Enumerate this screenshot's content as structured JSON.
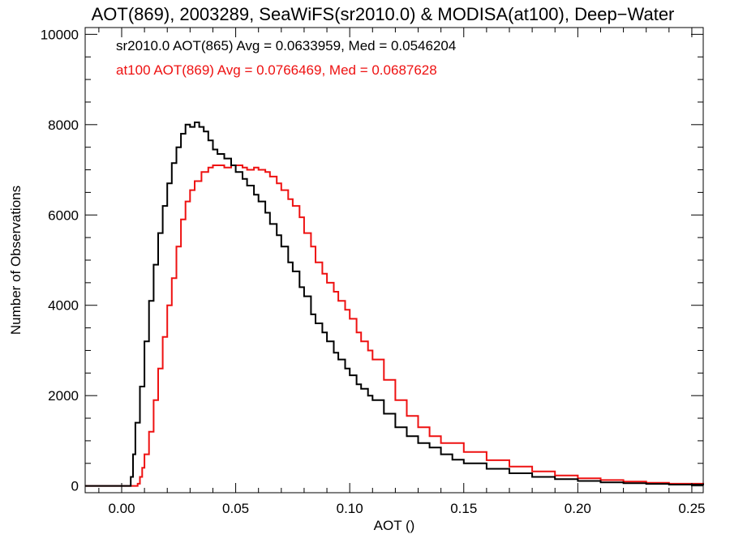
{
  "chart_data": {
    "type": "step-histogram",
    "title": "AOT(869), 2003289, SeaWiFS(sr2010.0) & MODISA(at100), Deep−Water",
    "xlabel": "AOT ()",
    "ylabel": "Number of Observations",
    "xlim": [
      -0.016,
      0.255
    ],
    "ylim": [
      -150,
      10150
    ],
    "xticks": [
      0.0,
      0.05,
      0.1,
      0.15,
      0.2,
      0.25
    ],
    "xtick_labels": [
      "0.00",
      "0.05",
      "0.10",
      "0.15",
      "0.20",
      "0.25"
    ],
    "yticks": [
      0,
      2000,
      4000,
      6000,
      8000,
      10000
    ],
    "ytick_labels": [
      "0",
      "2000",
      "4000",
      "6000",
      "8000",
      "10000"
    ],
    "grid": false,
    "legend_position": "top-left",
    "series": [
      {
        "name": "sr2010.0 AOT(865) Avg = 0.0633959, Med = 0.0546204",
        "color": "#000000",
        "points": [
          [
            -0.016,
            0
          ],
          [
            0.003,
            0
          ],
          [
            0.004,
            200
          ],
          [
            0.005,
            700
          ],
          [
            0.006,
            1400
          ],
          [
            0.008,
            2200
          ],
          [
            0.01,
            3200
          ],
          [
            0.012,
            4100
          ],
          [
            0.014,
            4900
          ],
          [
            0.016,
            5600
          ],
          [
            0.018,
            6200
          ],
          [
            0.02,
            6700
          ],
          [
            0.022,
            7150
          ],
          [
            0.024,
            7500
          ],
          [
            0.026,
            7800
          ],
          [
            0.028,
            8000
          ],
          [
            0.03,
            7950
          ],
          [
            0.032,
            8050
          ],
          [
            0.034,
            7950
          ],
          [
            0.036,
            7850
          ],
          [
            0.038,
            7650
          ],
          [
            0.04,
            7450
          ],
          [
            0.042,
            7350
          ],
          [
            0.045,
            7250
          ],
          [
            0.048,
            7100
          ],
          [
            0.05,
            6950
          ],
          [
            0.053,
            6800
          ],
          [
            0.055,
            6650
          ],
          [
            0.058,
            6450
          ],
          [
            0.06,
            6300
          ],
          [
            0.063,
            6050
          ],
          [
            0.065,
            5800
          ],
          [
            0.068,
            5550
          ],
          [
            0.07,
            5300
          ],
          [
            0.073,
            4950
          ],
          [
            0.075,
            4750
          ],
          [
            0.078,
            4400
          ],
          [
            0.08,
            4200
          ],
          [
            0.083,
            3800
          ],
          [
            0.085,
            3600
          ],
          [
            0.088,
            3400
          ],
          [
            0.09,
            3200
          ],
          [
            0.093,
            2950
          ],
          [
            0.095,
            2800
          ],
          [
            0.098,
            2600
          ],
          [
            0.1,
            2450
          ],
          [
            0.103,
            2250
          ],
          [
            0.105,
            2150
          ],
          [
            0.108,
            2000
          ],
          [
            0.11,
            1900
          ],
          [
            0.115,
            1600
          ],
          [
            0.12,
            1300
          ],
          [
            0.125,
            1100
          ],
          [
            0.13,
            950
          ],
          [
            0.135,
            850
          ],
          [
            0.14,
            700
          ],
          [
            0.145,
            580
          ],
          [
            0.15,
            500
          ],
          [
            0.16,
            380
          ],
          [
            0.17,
            280
          ],
          [
            0.18,
            200
          ],
          [
            0.19,
            150
          ],
          [
            0.2,
            110
          ],
          [
            0.21,
            80
          ],
          [
            0.22,
            60
          ],
          [
            0.23,
            45
          ],
          [
            0.24,
            30
          ],
          [
            0.255,
            15
          ]
        ]
      },
      {
        "name": "at100 AOT(869) Avg = 0.0766469, Med = 0.0687628",
        "color": "#ee1111",
        "points": [
          [
            -0.016,
            0
          ],
          [
            0.006,
            0
          ],
          [
            0.007,
            50
          ],
          [
            0.008,
            200
          ],
          [
            0.009,
            400
          ],
          [
            0.01,
            700
          ],
          [
            0.012,
            1200
          ],
          [
            0.014,
            1900
          ],
          [
            0.016,
            2600
          ],
          [
            0.018,
            3300
          ],
          [
            0.02,
            4000
          ],
          [
            0.022,
            4600
          ],
          [
            0.024,
            5300
          ],
          [
            0.026,
            5900
          ],
          [
            0.028,
            6300
          ],
          [
            0.03,
            6550
          ],
          [
            0.032,
            6750
          ],
          [
            0.035,
            6950
          ],
          [
            0.038,
            7050
          ],
          [
            0.04,
            7100
          ],
          [
            0.043,
            7100
          ],
          [
            0.045,
            7050
          ],
          [
            0.048,
            7100
          ],
          [
            0.05,
            7100
          ],
          [
            0.053,
            7050
          ],
          [
            0.055,
            7000
          ],
          [
            0.058,
            7050
          ],
          [
            0.06,
            7000
          ],
          [
            0.063,
            6950
          ],
          [
            0.065,
            6850
          ],
          [
            0.068,
            6700
          ],
          [
            0.07,
            6550
          ],
          [
            0.073,
            6350
          ],
          [
            0.075,
            6200
          ],
          [
            0.078,
            5950
          ],
          [
            0.08,
            5600
          ],
          [
            0.083,
            5300
          ],
          [
            0.085,
            4950
          ],
          [
            0.088,
            4700
          ],
          [
            0.09,
            4500
          ],
          [
            0.093,
            4300
          ],
          [
            0.095,
            4100
          ],
          [
            0.098,
            3900
          ],
          [
            0.1,
            3700
          ],
          [
            0.103,
            3400
          ],
          [
            0.105,
            3200
          ],
          [
            0.108,
            3000
          ],
          [
            0.11,
            2800
          ],
          [
            0.115,
            2350
          ],
          [
            0.12,
            1900
          ],
          [
            0.125,
            1550
          ],
          [
            0.13,
            1300
          ],
          [
            0.135,
            1100
          ],
          [
            0.14,
            950
          ],
          [
            0.15,
            750
          ],
          [
            0.16,
            570
          ],
          [
            0.17,
            430
          ],
          [
            0.18,
            320
          ],
          [
            0.19,
            230
          ],
          [
            0.2,
            170
          ],
          [
            0.21,
            130
          ],
          [
            0.22,
            95
          ],
          [
            0.23,
            70
          ],
          [
            0.24,
            50
          ],
          [
            0.255,
            35
          ]
        ]
      }
    ]
  }
}
